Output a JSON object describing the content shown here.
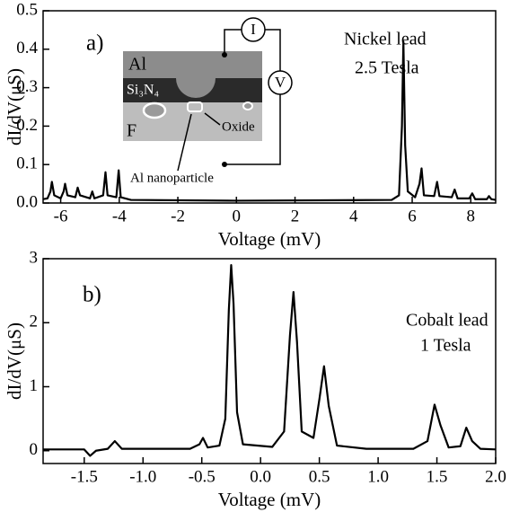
{
  "chart_data": [
    {
      "type": "line",
      "panel_label": "a)",
      "xlabel": "Voltage (mV)",
      "ylabel": "dI/dV(μS)",
      "annotations": [
        "Nickel lead",
        "2.5 Tesla"
      ],
      "inset": {
        "layers": [
          "Al",
          "Si₃N₄",
          "F"
        ],
        "oxide": "Oxide",
        "particle": "Al nanoparticle",
        "meters": [
          "I",
          "V"
        ]
      },
      "color": "#000000",
      "x": [
        -6.6,
        -6.45,
        -6.35,
        -6.3,
        -6.22,
        -6.0,
        -5.9,
        -5.85,
        -5.77,
        -5.5,
        -5.42,
        -5.34,
        -5.0,
        -4.92,
        -4.85,
        -4.55,
        -4.47,
        -4.4,
        -4.1,
        -4.02,
        -3.95,
        -3.6,
        0,
        5.3,
        5.55,
        5.65,
        5.7,
        5.76,
        5.85,
        6.1,
        6.25,
        6.32,
        6.4,
        6.75,
        6.85,
        6.93,
        7.35,
        7.45,
        7.55,
        7.95,
        8.05,
        8.15,
        8.55,
        8.62,
        8.7,
        8.85
      ],
      "values": [
        0.01,
        0.012,
        0.03,
        0.055,
        0.02,
        0.012,
        0.03,
        0.05,
        0.02,
        0.015,
        0.04,
        0.02,
        0.012,
        0.03,
        0.012,
        0.02,
        0.08,
        0.02,
        0.015,
        0.085,
        0.015,
        0.008,
        0.006,
        0.008,
        0.02,
        0.2,
        0.42,
        0.15,
        0.03,
        0.015,
        0.05,
        0.09,
        0.02,
        0.018,
        0.055,
        0.018,
        0.015,
        0.035,
        0.012,
        0.012,
        0.025,
        0.01,
        0.01,
        0.018,
        0.01,
        0.008
      ],
      "xlim": [
        -6.6,
        8.85
      ],
      "ylim": [
        0,
        0.5
      ],
      "xticks": [
        -6,
        -4,
        -2,
        0,
        2,
        4,
        6,
        8
      ],
      "yticks": [
        {
          "value": 0,
          "label": "0.0"
        },
        0.1,
        0.2,
        0.3,
        0.4,
        0.5
      ]
    },
    {
      "type": "line",
      "panel_label": "b)",
      "xlabel": "Voltage (mV)",
      "ylabel": "dI/dV(μS)",
      "annotations": [
        "Cobalt lead",
        "1 Tesla"
      ],
      "color": "#000000",
      "x": [
        -1.85,
        -1.5,
        -1.45,
        -1.4,
        -1.3,
        -1.24,
        -1.18,
        -0.6,
        -0.52,
        -0.49,
        -0.45,
        -0.35,
        -0.3,
        -0.27,
        -0.25,
        -0.23,
        -0.2,
        -0.15,
        0.1,
        0.2,
        0.25,
        0.28,
        0.31,
        0.35,
        0.45,
        0.5,
        0.54,
        0.58,
        0.65,
        0.9,
        1.3,
        1.42,
        1.48,
        1.53,
        1.6,
        1.7,
        1.75,
        1.8,
        1.87,
        2.0
      ],
      "values": [
        0.02,
        0.02,
        -0.08,
        0.0,
        0.03,
        0.15,
        0.03,
        0.03,
        0.1,
        0.2,
        0.05,
        0.08,
        0.5,
        2.2,
        2.9,
        2.3,
        0.6,
        0.1,
        0.06,
        0.3,
        1.8,
        2.48,
        1.7,
        0.3,
        0.2,
        0.8,
        1.32,
        0.7,
        0.08,
        0.03,
        0.03,
        0.15,
        0.72,
        0.4,
        0.05,
        0.07,
        0.36,
        0.15,
        0.03,
        0.02
      ],
      "xlim": [
        -1.85,
        2.0
      ],
      "ylim": [
        -0.2,
        3
      ],
      "xticks": [
        -1.5,
        {
          "value": -1,
          "label": "-1.0"
        },
        -0.5,
        {
          "value": 0,
          "label": "0.0"
        },
        0.5,
        {
          "value": 1,
          "label": "1.0"
        },
        1.5,
        {
          "value": 2,
          "label": "2.0"
        }
      ],
      "yticks": [
        0,
        1,
        2,
        3
      ]
    }
  ]
}
